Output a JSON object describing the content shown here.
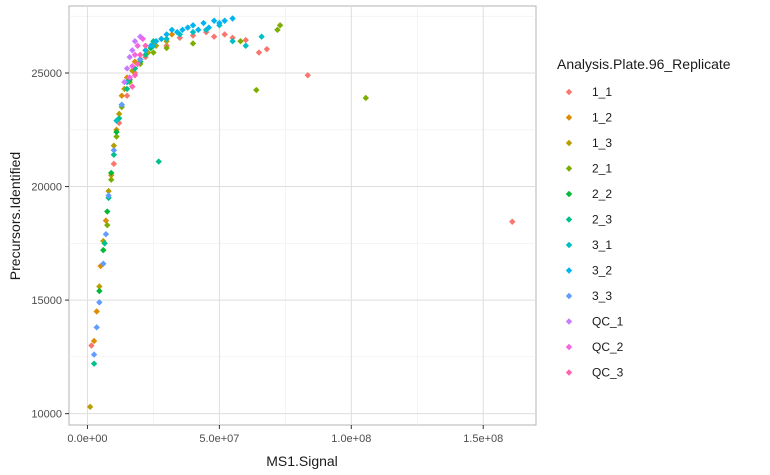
{
  "chart_data": {
    "type": "scatter",
    "xlabel": "MS1.Signal",
    "ylabel": "Precursors.Identified",
    "xlim": [
      -7000000,
      170000000
    ],
    "ylim": [
      9500,
      27950
    ],
    "x_ticks": [
      0,
      50000000,
      100000000,
      150000000
    ],
    "x_tick_labels": [
      "0.0e+00",
      "5.0e+07",
      "1.0e+08",
      "1.5e+08"
    ],
    "y_ticks": [
      10000,
      15000,
      20000,
      25000
    ],
    "y_tick_labels": [
      "10000",
      "15000",
      "20000",
      "25000"
    ],
    "grid": true,
    "legend": {
      "title": "Analysis.Plate.96_Replicate",
      "position": "right"
    },
    "marker": "diamond",
    "series": [
      {
        "name": "1_1",
        "color": "#F8766D",
        "x": [
          161000000,
          83500000,
          68000000,
          65000000,
          60000000,
          55000000,
          52000000,
          48000000,
          45000000,
          40000000,
          35000000,
          30000000,
          22000000,
          18000000,
          15000000,
          12000000,
          10000000,
          1500000
        ],
        "y": [
          18450,
          24900,
          26050,
          25900,
          26450,
          26550,
          26700,
          26600,
          26800,
          26650,
          26550,
          26200,
          25700,
          25000,
          24000,
          22800,
          21000,
          13000
        ]
      },
      {
        "name": "1_2",
        "color": "#DE8C00",
        "x": [
          32000000,
          28000000,
          25000000,
          22000000,
          18000000,
          15000000,
          13000000,
          11000000,
          9000000,
          7000000,
          5000000,
          3500000,
          2500000
        ],
        "y": [
          26700,
          26500,
          26300,
          26000,
          25500,
          24800,
          24000,
          22500,
          20500,
          18500,
          16500,
          14500,
          13200
        ]
      },
      {
        "name": "1_3",
        "color": "#B79F00",
        "x": [
          30000000,
          26000000,
          23000000,
          20000000,
          17000000,
          14000000,
          12000000,
          10000000,
          8000000,
          6000000,
          4500000,
          1000000
        ],
        "y": [
          26400,
          26200,
          25900,
          25600,
          25100,
          24300,
          23200,
          21800,
          19800,
          17600,
          15600,
          10300
        ]
      },
      {
        "name": "2_1",
        "color": "#7CAE00",
        "x": [
          105500000,
          73000000,
          72000000,
          64000000,
          58000000,
          40000000,
          30000000,
          25000000,
          20000000,
          16000000,
          13000000,
          11000000,
          9000000,
          7500000
        ],
        "y": [
          23900,
          27100,
          26900,
          24250,
          26400,
          26300,
          26100,
          25900,
          25400,
          24600,
          23500,
          22200,
          20300,
          18300
        ]
      },
      {
        "name": "2_2",
        "color": "#00BA38",
        "x": [
          24000000,
          20000000,
          16000000,
          13000000,
          11000000,
          9000000,
          7500000,
          6000000,
          4500000
        ],
        "y": [
          26100,
          25500,
          24700,
          23600,
          22400,
          20600,
          18900,
          17200,
          15400
        ]
      },
      {
        "name": "2_3",
        "color": "#00C08B",
        "x": [
          27000000,
          25000000,
          22000000,
          18000000,
          15000000,
          12000000,
          10000000,
          8000000,
          6500000,
          2500000
        ],
        "y": [
          21100,
          26400,
          25800,
          25200,
          24300,
          23000,
          21400,
          19500,
          17500,
          12200
        ]
      },
      {
        "name": "3_1",
        "color": "#00BFC4",
        "x": [
          66000000,
          60000000,
          55000000,
          50000000,
          45000000,
          40000000,
          35000000,
          30000000,
          25000000,
          20000000,
          15000000,
          11000000
        ],
        "y": [
          26600,
          26200,
          26400,
          27100,
          26900,
          26800,
          26700,
          26500,
          26200,
          25600,
          24600,
          22900
        ]
      },
      {
        "name": "3_2",
        "color": "#00B4F0",
        "x": [
          55000000,
          52000000,
          50000000,
          48000000,
          46000000,
          44000000,
          42000000,
          40000000,
          38000000,
          36000000,
          34000000,
          32000000,
          30000000,
          28000000,
          26000000,
          24000000,
          22000000
        ],
        "y": [
          27400,
          27300,
          27200,
          27300,
          27000,
          27200,
          26900,
          27100,
          27000,
          26900,
          26800,
          26900,
          26700,
          26500,
          26400,
          26200,
          26000
        ]
      },
      {
        "name": "3_3",
        "color": "#619CFF",
        "x": [
          20000000,
          16000000,
          13000000,
          10000000,
          8000000,
          7000000,
          6000000,
          4500000,
          3500000,
          2500000
        ],
        "y": [
          25600,
          24800,
          23600,
          21600,
          19600,
          17900,
          16600,
          14900,
          13800,
          12600
        ]
      },
      {
        "name": "QC_1",
        "color": "#C77CFF",
        "x": [
          20000000,
          18000000,
          17000000,
          16000000,
          15000000,
          14000000
        ],
        "y": [
          26600,
          26400,
          26000,
          25700,
          25200,
          24600
        ]
      },
      {
        "name": "QC_2",
        "color": "#F564E3",
        "x": [
          21000000,
          19000000,
          18000000,
          17000000,
          16000000
        ],
        "y": [
          26500,
          26200,
          25800,
          25300,
          24800
        ]
      },
      {
        "name": "QC_3",
        "color": "#FF64B0",
        "x": [
          22000000,
          20000000,
          19000000,
          18000000,
          17000000
        ],
        "y": [
          26200,
          25800,
          25400,
          24900,
          24400
        ]
      }
    ]
  }
}
